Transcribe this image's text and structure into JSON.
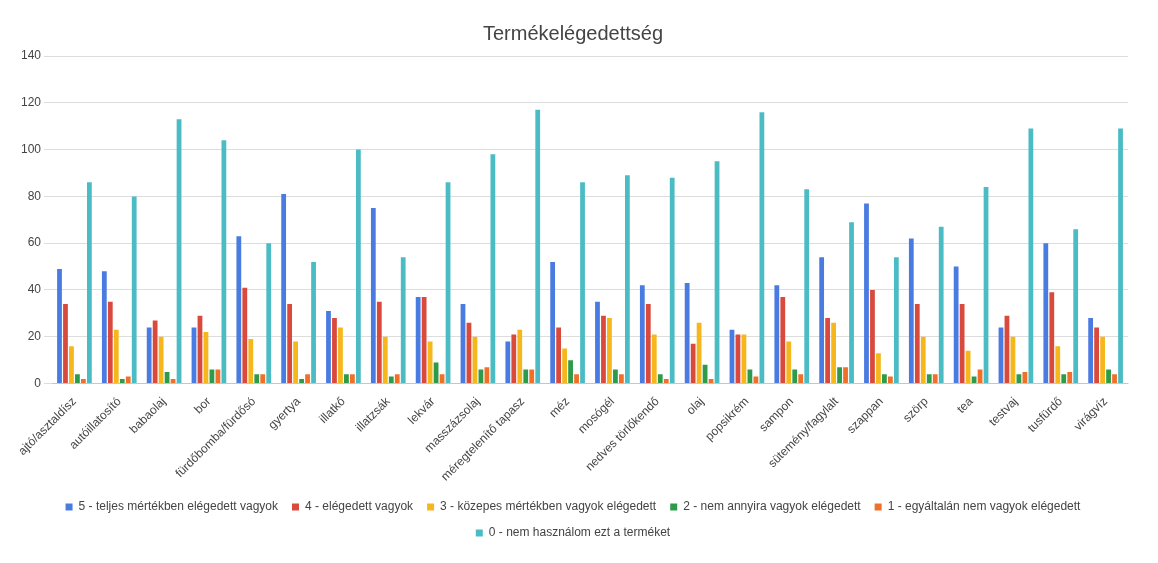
{
  "chart_data": {
    "type": "bar",
    "title": "Termékelégedettség",
    "categories": [
      "ajtó/asztaldísz",
      "autóillatosító",
      "babaolaj",
      "bor",
      "fürdőbomba/fürdősó",
      "gyertya",
      "illatkő",
      "illatzsák",
      "lekvár",
      "masszázsolaj",
      "méregtelenítő tapasz",
      "méz",
      "mosógél",
      "nedves törlőkendő",
      "olaj",
      "popsikrém",
      "sampon",
      "sütemény/fagylalt",
      "szappan",
      "szörp",
      "tea",
      "testvaj",
      "tusfürdő",
      "virágvíz"
    ],
    "series": [
      {
        "name": "5 - teljes mértékben elégedett vagyok",
        "color": "#4a7be0",
        "values": [
          49,
          48,
          24,
          24,
          63,
          81,
          31,
          75,
          37,
          34,
          18,
          52,
          35,
          42,
          43,
          23,
          42,
          54,
          77,
          62,
          50,
          24,
          60,
          28
        ]
      },
      {
        "name": "4 - elégedett vagyok",
        "color": "#d94a3d",
        "values": [
          34,
          35,
          27,
          29,
          41,
          34,
          28,
          35,
          37,
          26,
          21,
          24,
          29,
          34,
          17,
          21,
          37,
          28,
          40,
          34,
          34,
          29,
          39,
          24
        ]
      },
      {
        "name": "3 - közepes mértékben vagyok elégedett",
        "color": "#f5b71c",
        "values": [
          16,
          23,
          20,
          22,
          19,
          18,
          24,
          20,
          18,
          20,
          23,
          15,
          28,
          21,
          26,
          21,
          18,
          26,
          13,
          20,
          14,
          20,
          16,
          20
        ]
      },
      {
        "name": "2 - nem annyira vagyok elégedett",
        "color": "#2e9b4a",
        "values": [
          4,
          2,
          5,
          6,
          4,
          2,
          4,
          3,
          9,
          6,
          6,
          10,
          6,
          4,
          8,
          6,
          6,
          7,
          4,
          4,
          3,
          4,
          4,
          6
        ]
      },
      {
        "name": "1 - egyáltalán nem vagyok elégedett",
        "color": "#f0702a",
        "values": [
          2,
          3,
          2,
          6,
          4,
          4,
          4,
          4,
          4,
          7,
          6,
          4,
          4,
          2,
          2,
          3,
          4,
          7,
          3,
          4,
          6,
          5,
          5,
          4
        ]
      },
      {
        "name": "0 - nem használom ezt a terméket",
        "color": "#4cbcc4",
        "values": [
          86,
          80,
          113,
          104,
          60,
          52,
          100,
          54,
          86,
          98,
          117,
          86,
          89,
          88,
          95,
          116,
          83,
          69,
          54,
          67,
          84,
          109,
          66,
          109
        ]
      }
    ],
    "ylim": [
      0,
      140
    ],
    "yticks": [
      0,
      20,
      40,
      60,
      80,
      100,
      120,
      140
    ],
    "grid": "y",
    "legend": "bottom"
  }
}
